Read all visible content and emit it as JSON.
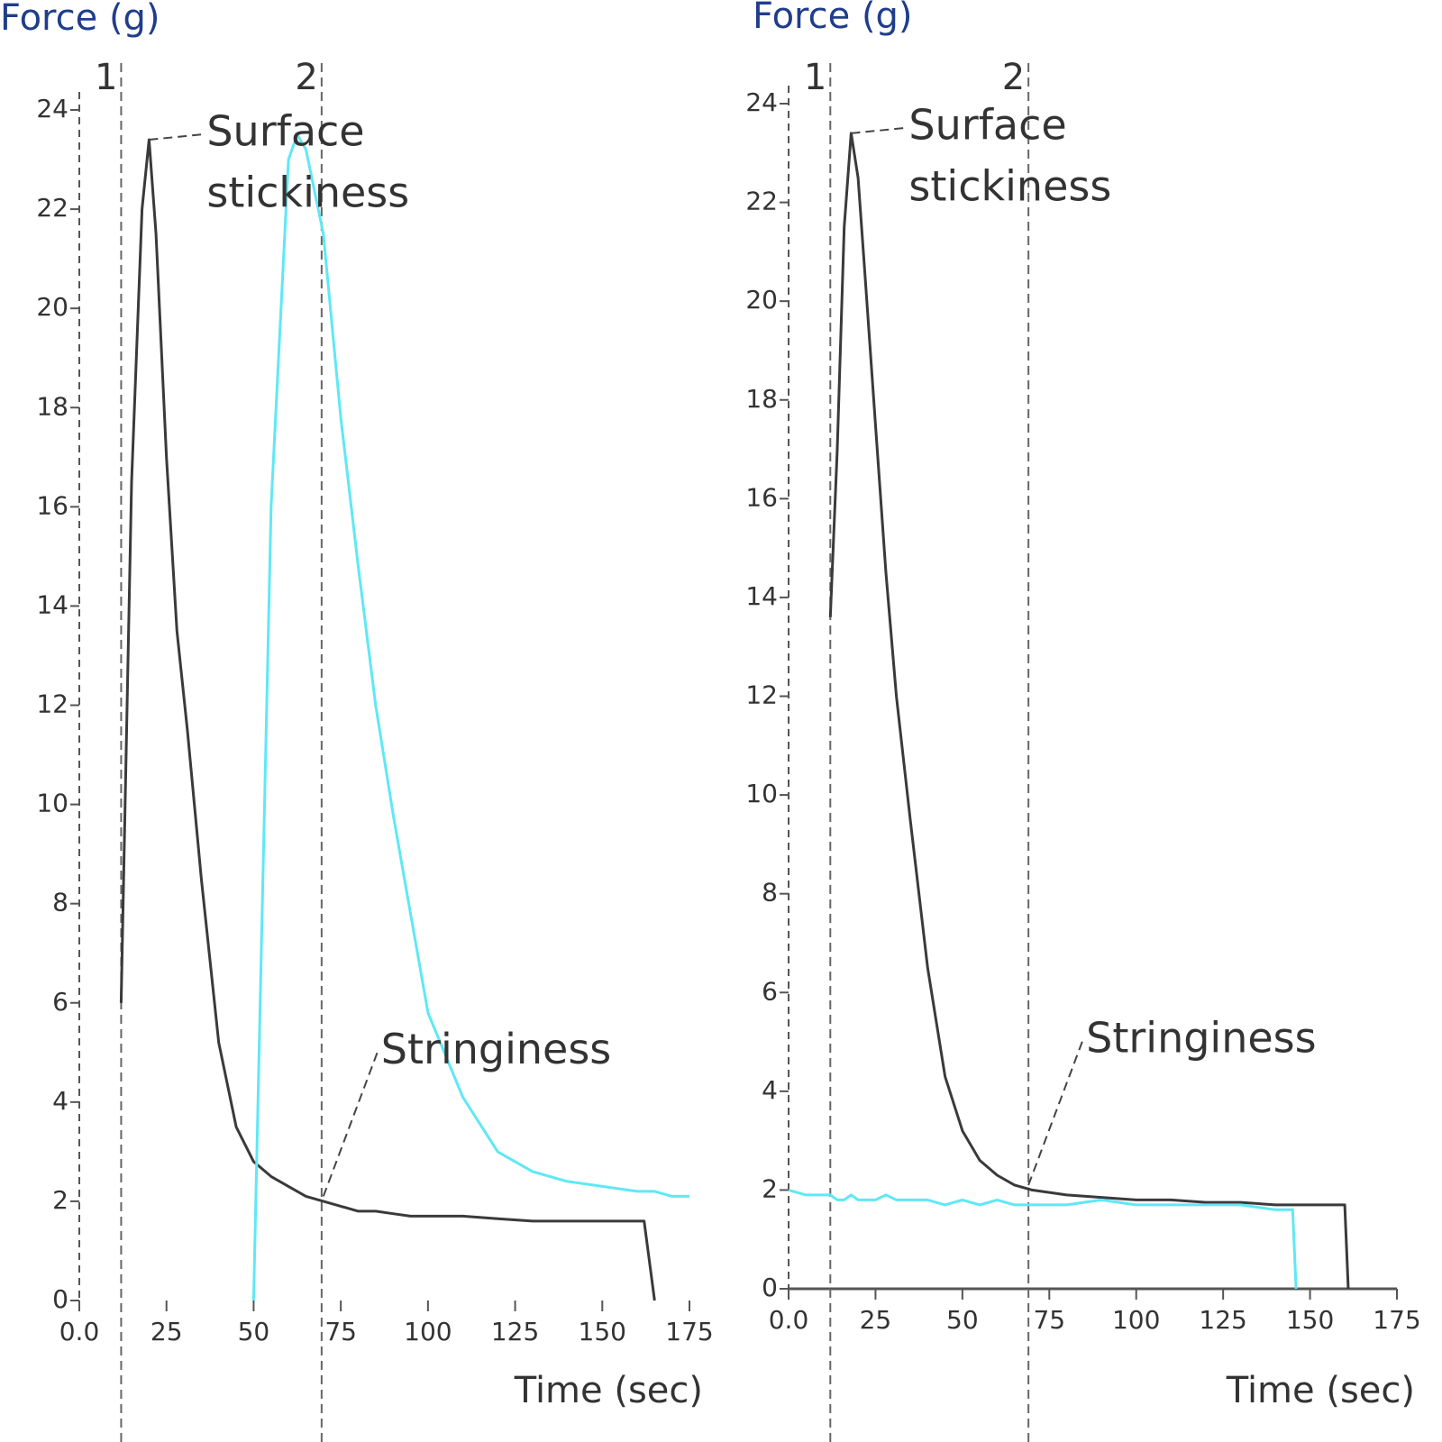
{
  "chart_data": [
    {
      "type": "line",
      "y_label": "Force (g)",
      "x_label": "Time (sec)",
      "xlim": [
        0,
        175
      ],
      "ylim": [
        0,
        24
      ],
      "xticks": [
        {
          "value": 0,
          "label": "0.0"
        },
        25,
        50,
        75,
        100,
        125,
        150,
        175
      ],
      "yticks": [
        0,
        2,
        4,
        6,
        8,
        10,
        12,
        14,
        16,
        18,
        20,
        22,
        24
      ],
      "x": [
        0,
        5,
        10,
        12,
        15,
        18,
        20,
        22,
        25,
        28,
        31,
        35,
        40,
        45,
        50,
        55,
        60,
        62.5,
        65,
        70,
        75,
        80,
        85,
        90,
        95,
        100,
        110,
        120,
        130,
        140,
        150,
        160,
        162,
        165,
        170,
        175
      ],
      "series": [
        {
          "color": "#3a3a3a",
          "values": [
            null,
            null,
            null,
            6,
            16.5,
            22,
            23.4,
            21.5,
            17,
            13.5,
            11.5,
            8.5,
            5.2,
            3.5,
            2.8,
            2.5,
            2.3,
            2.2,
            2.1,
            2.0,
            1.9,
            1.8,
            1.8,
            1.75,
            1.7,
            1.7,
            1.7,
            1.65,
            1.6,
            1.6,
            1.6,
            1.6,
            1.6,
            0,
            null,
            null
          ]
        },
        {
          "color": "#5fe8f5",
          "values": [
            null,
            null,
            null,
            null,
            null,
            null,
            null,
            null,
            null,
            null,
            null,
            null,
            null,
            null,
            0,
            16,
            23,
            23.5,
            23.2,
            21.5,
            17.8,
            14.8,
            12,
            9.8,
            7.8,
            5.8,
            4.1,
            3,
            2.6,
            2.4,
            2.3,
            2.2,
            2.2,
            2.2,
            2.1,
            2.1
          ]
        }
      ],
      "markers": [
        {
          "x": 12,
          "label": "1"
        },
        {
          "x": 69.5,
          "label": "2"
        }
      ],
      "annotations": [
        {
          "lines": [
            "Surface",
            "stickiness"
          ],
          "x": 20,
          "y": 23.4
        },
        {
          "lines": [
            "Stringiness"
          ],
          "x": 70,
          "y": 2.1
        }
      ]
    },
    {
      "type": "line",
      "y_label": "Force (g)",
      "x_label": "Time (sec)",
      "xlim": [
        0,
        175
      ],
      "ylim": [
        0,
        24
      ],
      "xticks": [
        {
          "value": 0,
          "label": "0.0"
        },
        25,
        50,
        75,
        100,
        125,
        150,
        175
      ],
      "yticks": [
        0,
        2,
        4,
        6,
        8,
        10,
        12,
        14,
        16,
        18,
        20,
        22,
        24
      ],
      "x": [
        0,
        5,
        10,
        12,
        14,
        16,
        18,
        20,
        22,
        25,
        28,
        31,
        35,
        40,
        45,
        50,
        55,
        60,
        65,
        70,
        80,
        90,
        100,
        110,
        120,
        130,
        140,
        145,
        146,
        150,
        160,
        161,
        165,
        170,
        175
      ],
      "series": [
        {
          "color": "#3a3a3a",
          "values": [
            null,
            null,
            null,
            13.6,
            17,
            21.5,
            23.4,
            22.5,
            20.5,
            17.5,
            14.5,
            12,
            9.5,
            6.5,
            4.3,
            3.2,
            2.6,
            2.3,
            2.1,
            2.0,
            1.9,
            1.85,
            1.8,
            1.8,
            1.75,
            1.75,
            1.7,
            1.7,
            1.7,
            1.7,
            1.7,
            0,
            null,
            null,
            null
          ]
        },
        {
          "color": "#5fe8f5",
          "values": [
            2.0,
            1.9,
            1.9,
            1.9,
            1.8,
            1.8,
            1.9,
            1.8,
            1.8,
            1.8,
            1.9,
            1.8,
            1.8,
            1.8,
            1.7,
            1.8,
            1.7,
            1.8,
            1.7,
            1.7,
            1.7,
            1.8,
            1.7,
            1.7,
            1.7,
            1.7,
            1.6,
            1.6,
            0,
            null,
            null,
            null,
            null,
            null,
            null
          ]
        }
      ],
      "markers": [
        {
          "x": 12,
          "label": "1"
        },
        {
          "x": 69,
          "label": "2"
        }
      ],
      "annotations": [
        {
          "lines": [
            "Surface",
            "stickiness"
          ],
          "x": 18,
          "y": 23.4
        },
        {
          "lines": [
            "Stringiness"
          ],
          "x": 69,
          "y": 2.1
        }
      ]
    }
  ]
}
